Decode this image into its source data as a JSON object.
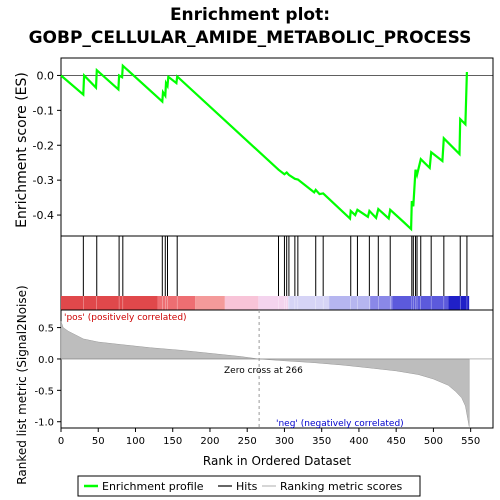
{
  "title_line1": "Enrichment plot:",
  "title_line2": "GOBP_CELLULAR_AMIDE_METABOLIC_PROCESS",
  "chart_data": {
    "type": "line",
    "es_panel": {
      "ylabel": "Enrichment score (ES)",
      "ylim": [
        -0.46,
        0.05
      ],
      "yticks": [
        0.0,
        -0.1,
        -0.2,
        -0.3,
        -0.4
      ],
      "ytick_labels": [
        "0.0",
        "-0.1",
        "-0.2",
        "-0.3",
        "-0.4"
      ],
      "series": [
        {
          "name": "Enrichment profile",
          "color": "#00ff00",
          "x": [
            0,
            30,
            31,
            47,
            48,
            77,
            78,
            82,
            83,
            136,
            137,
            140,
            141,
            143,
            144,
            155,
            156,
            292,
            300,
            303,
            306,
            314,
            318,
            340,
            342,
            347,
            352,
            388,
            389,
            395,
            398,
            412,
            414,
            423,
            426,
            440,
            442,
            460,
            470,
            471,
            473,
            476,
            478,
            483,
            495,
            497,
            512,
            514,
            535,
            536,
            543,
            545
          ],
          "y": [
            0.0,
            -0.055,
            0.0,
            -0.035,
            0.015,
            -0.04,
            0.0,
            -0.005,
            0.028,
            -0.075,
            -0.048,
            -0.058,
            -0.022,
            -0.03,
            -0.004,
            -0.022,
            -0.003,
            -0.27,
            -0.283,
            -0.278,
            -0.285,
            -0.296,
            -0.298,
            -0.335,
            -0.328,
            -0.34,
            -0.338,
            -0.41,
            -0.388,
            -0.4,
            -0.385,
            -0.405,
            -0.388,
            -0.408,
            -0.383,
            -0.41,
            -0.385,
            -0.42,
            -0.44,
            -0.36,
            -0.375,
            -0.27,
            -0.285,
            -0.24,
            -0.265,
            -0.22,
            -0.245,
            -0.18,
            -0.225,
            -0.125,
            -0.14,
            0.01
          ]
        }
      ]
    },
    "hits": [
      30,
      48,
      78,
      83,
      136,
      140,
      143,
      156,
      292,
      300,
      303,
      306,
      314,
      318,
      342,
      352,
      389,
      398,
      414,
      426,
      442,
      471,
      473,
      476,
      478,
      483,
      497,
      514,
      536,
      545
    ],
    "color_bar": {
      "segments": [
        {
          "from": 0,
          "to": 130,
          "color": "#e0484b"
        },
        {
          "from": 130,
          "to": 180,
          "color": "#ee6e72"
        },
        {
          "from": 180,
          "to": 220,
          "color": "#f49a9a"
        },
        {
          "from": 220,
          "to": 265,
          "color": "#f8c4d8"
        },
        {
          "from": 265,
          "to": 305,
          "color": "#f4d4ee"
        },
        {
          "from": 305,
          "to": 360,
          "color": "#d6d4f6"
        },
        {
          "from": 360,
          "to": 415,
          "color": "#b6b6f0"
        },
        {
          "from": 415,
          "to": 445,
          "color": "#8a88e8"
        },
        {
          "from": 445,
          "to": 520,
          "color": "#5c5adc"
        },
        {
          "from": 520,
          "to": 548,
          "color": "#2020c8"
        }
      ]
    },
    "metric_panel": {
      "ylabel": "Ranked list metric (Signal2Noise)",
      "ylim": [
        -1.1,
        0.78
      ],
      "yticks": [
        0.5,
        0.0,
        -0.5,
        -1.0
      ],
      "ytick_labels": [
        "0.5",
        "0.0",
        "-0.5",
        "-1.0"
      ],
      "positive_label": "'pos' (positively correlated)",
      "negative_label": "'neg' (negatively correlated)",
      "zero_cross_label": "Zero cross at 266",
      "zero_cross": 266,
      "metric_curve": {
        "x": [
          0,
          3,
          10,
          20,
          30,
          50,
          80,
          120,
          160,
          200,
          240,
          266,
          300,
          340,
          380,
          420,
          450,
          480,
          500,
          520,
          530,
          538,
          543,
          546,
          548
        ],
        "y": [
          0.6,
          0.5,
          0.44,
          0.38,
          0.32,
          0.27,
          0.23,
          0.18,
          0.14,
          0.09,
          0.04,
          0.0,
          -0.03,
          -0.06,
          -0.1,
          -0.15,
          -0.19,
          -0.25,
          -0.32,
          -0.42,
          -0.52,
          -0.62,
          -0.75,
          -0.95,
          -1.08
        ]
      }
    },
    "xaxis": {
      "xlabel": "Rank in Ordered Dataset",
      "xlim": [
        0,
        580
      ],
      "xticks": [
        0,
        50,
        100,
        150,
        200,
        250,
        300,
        350,
        400,
        450,
        500,
        550
      ],
      "xtick_labels": [
        "0",
        "50",
        "100",
        "150",
        "200",
        "250",
        "300",
        "350",
        "400",
        "450",
        "500",
        "550"
      ]
    },
    "legend": {
      "position": "bottom",
      "items": [
        {
          "label": "Enrichment profile",
          "color": "#00ff00",
          "kind": "line"
        },
        {
          "label": "Hits",
          "color": "#000000",
          "kind": "line"
        },
        {
          "label": "Ranking metric scores",
          "color": "#c8c8c8",
          "kind": "line"
        }
      ]
    },
    "grid": false
  }
}
